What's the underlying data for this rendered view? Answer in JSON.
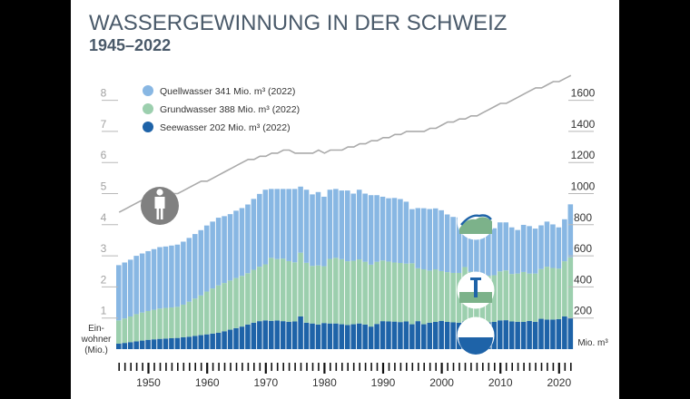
{
  "chart_data": {
    "type": "area",
    "title": "WASSERGEWINNUNG IN DER SCHWEIZ",
    "subtitle": "1945–2022",
    "x": [
      1945,
      1946,
      1947,
      1948,
      1949,
      1950,
      1951,
      1952,
      1953,
      1954,
      1955,
      1956,
      1957,
      1958,
      1959,
      1960,
      1961,
      1962,
      1963,
      1964,
      1965,
      1966,
      1967,
      1968,
      1969,
      1970,
      1971,
      1972,
      1973,
      1974,
      1975,
      1976,
      1977,
      1978,
      1979,
      1980,
      1981,
      1982,
      1983,
      1984,
      1985,
      1986,
      1987,
      1988,
      1989,
      1990,
      1991,
      1992,
      1993,
      1994,
      1995,
      1996,
      1997,
      1998,
      1999,
      2000,
      2001,
      2002,
      2003,
      2004,
      2005,
      2006,
      2007,
      2008,
      2009,
      2010,
      2011,
      2012,
      2013,
      2014,
      2015,
      2016,
      2017,
      2018,
      2019,
      2020,
      2021,
      2022
    ],
    "series": [
      {
        "name": "Seewasser",
        "legend": "Seewasser 202 Mio. m³ (2022)",
        "color": "#1e63a8",
        "values": [
          35,
          40,
          45,
          50,
          55,
          60,
          63,
          66,
          68,
          70,
          72,
          76,
          80,
          85,
          90,
          95,
          100,
          105,
          115,
          125,
          135,
          145,
          158,
          170,
          180,
          185,
          182,
          184,
          180,
          176,
          178,
          210,
          170,
          165,
          158,
          168,
          165,
          165,
          160,
          155,
          160,
          165,
          158,
          145,
          162,
          180,
          178,
          177,
          174,
          178,
          160,
          180,
          160,
          170,
          175,
          182,
          175,
          172,
          170,
          178,
          175,
          165,
          158,
          172,
          175,
          185,
          186,
          178,
          176,
          175,
          181,
          176,
          195,
          190,
          190,
          193,
          210,
          202
        ]
      },
      {
        "name": "Grundwasser",
        "legend": "Grundwasser 388 Mio. m³ (2022)",
        "color": "#9ccfae",
        "values": [
          150,
          157,
          165,
          175,
          180,
          185,
          190,
          195,
          197,
          198,
          200,
          210,
          225,
          240,
          255,
          275,
          290,
          305,
          310,
          316,
          322,
          326,
          330,
          340,
          350,
          360,
          405,
          395,
          402,
          390,
          380,
          410,
          385,
          370,
          380,
          365,
          415,
          422,
          418,
          410,
          408,
          412,
          404,
          398,
          400,
          390,
          385,
          380,
          380,
          372,
          392,
          340,
          353,
          335,
          338,
          320,
          320,
          318,
          320,
          350,
          323,
          322,
          318,
          300,
          300,
          315,
          320,
          305,
          310,
          321,
          305,
          310,
          320,
          340,
          332,
          325,
          355,
          388
        ]
      },
      {
        "name": "Quellwasser",
        "legend": "Quellwasser 341 Mio. m³ (2022)",
        "color": "#88b7e3",
        "values": [
          355,
          360,
          365,
          375,
          380,
          385,
          390,
          395,
          395,
          398,
          400,
          405,
          410,
          415,
          420,
          425,
          430,
          435,
          430,
          427,
          433,
          436,
          442,
          456,
          468,
          480,
          443,
          451,
          448,
          464,
          472,
          425,
          470,
          460,
          472,
          447,
          445,
          443,
          442,
          455,
          432,
          448,
          438,
          447,
          428,
          410,
          407,
          415,
          411,
          398,
          348,
          387,
          393,
          396,
          392,
          391,
          371,
          360,
          357,
          367,
          332,
          323,
          324,
          308,
          302,
          315,
          309,
          300,
          280,
          303,
          305,
          289,
          281,
          290,
          280,
          265,
          270,
          341
        ]
      },
      {
        "name": "Einwohner",
        "color": "#aaaaaa",
        "values": [
          4.4,
          4.5,
          4.6,
          4.7,
          4.8,
          4.7,
          4.8,
          4.9,
          4.9,
          5.0,
          5.0,
          5.1,
          5.2,
          5.3,
          5.4,
          5.4,
          5.5,
          5.6,
          5.7,
          5.8,
          5.9,
          6.0,
          6.1,
          6.1,
          6.2,
          6.2,
          6.3,
          6.3,
          6.4,
          6.4,
          6.3,
          6.3,
          6.3,
          6.3,
          6.4,
          6.3,
          6.4,
          6.4,
          6.4,
          6.5,
          6.5,
          6.6,
          6.6,
          6.7,
          6.7,
          6.8,
          6.8,
          6.9,
          6.9,
          7.0,
          7.0,
          7.0,
          7.0,
          7.1,
          7.1,
          7.2,
          7.3,
          7.3,
          7.4,
          7.4,
          7.5,
          7.5,
          7.6,
          7.7,
          7.8,
          7.9,
          7.9,
          8.0,
          8.1,
          8.2,
          8.3,
          8.4,
          8.4,
          8.5,
          8.6,
          8.6,
          8.7,
          8.8
        ]
      }
    ],
    "y_left": {
      "ticks": [
        "1",
        "2",
        "3",
        "4",
        "5",
        "6",
        "7",
        "8"
      ],
      "label": [
        "Ein-",
        "wohner",
        "(Mio.)"
      ],
      "ylim": [
        0,
        10
      ]
    },
    "y_right": {
      "ticks": [
        "200",
        "400",
        "600",
        "800",
        "1000",
        "1200",
        "1400",
        "1600"
      ],
      "unit": "Mio. m³",
      "ylim": [
        0,
        2000
      ]
    },
    "x_ticks": [
      "1950",
      "1960",
      "1970",
      "1980",
      "1990",
      "2000",
      "2010",
      "2020"
    ],
    "legend_position": "top-left",
    "icons": [
      "person-icon",
      "spring-icon",
      "groundwater-icon",
      "lake-icon"
    ]
  }
}
